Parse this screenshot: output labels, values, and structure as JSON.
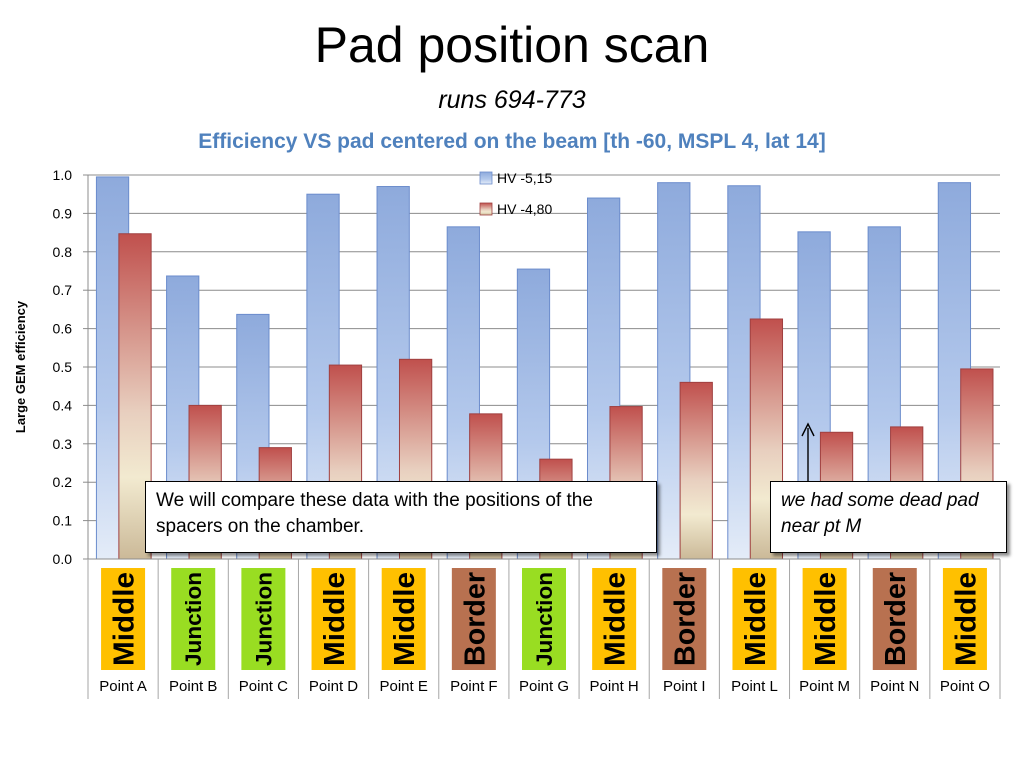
{
  "title": "Pad position scan",
  "subtitle": "runs 694-773",
  "notes": {
    "compare": "We will compare these data with the positions of the spacers on the chamber.",
    "dead_pad": "we had some dead pad near pt M"
  },
  "colors": {
    "series1": "#95b3e0",
    "series2": "#c0504d",
    "chart_title": "#4f81bd",
    "middle": "#ffc000",
    "junction": "#99dd22",
    "border": "#b87150"
  },
  "chart_data": {
    "type": "bar",
    "title": "Efficiency VS pad centered on the beam [th -60, MSPL 4, lat 14]",
    "ylabel": "Large GEM efficiency",
    "xlabel": "",
    "ylim": [
      0,
      1.0
    ],
    "yticks": [
      "0.0",
      "0.1",
      "0.2",
      "0.3",
      "0.4",
      "0.5",
      "0.6",
      "0.7",
      "0.8",
      "0.9",
      "1.0"
    ],
    "grid": true,
    "legend_position": "top-center",
    "categories": [
      "Point A",
      "Point B",
      "Point C",
      "Point D",
      "Point E",
      "Point F",
      "Point G",
      "Point H",
      "Point I",
      "Point L",
      "Point M",
      "Point N",
      "Point O"
    ],
    "position_labels": [
      "Middle",
      "Junction",
      "Junction",
      "Middle",
      "Middle",
      "Border",
      "Junction",
      "Middle",
      "Border",
      "Middle",
      "Middle",
      "Border",
      "Middle"
    ],
    "series": [
      {
        "name": "HV -5,15",
        "values": [
          0.995,
          0.737,
          0.637,
          0.95,
          0.97,
          0.865,
          0.755,
          0.94,
          0.98,
          0.972,
          0.852,
          0.865,
          0.98
        ]
      },
      {
        "name": "HV -4,80",
        "values": [
          0.847,
          0.4,
          0.29,
          0.505,
          0.52,
          0.378,
          0.26,
          0.397,
          0.46,
          0.625,
          0.33,
          0.344,
          0.495
        ]
      }
    ]
  }
}
